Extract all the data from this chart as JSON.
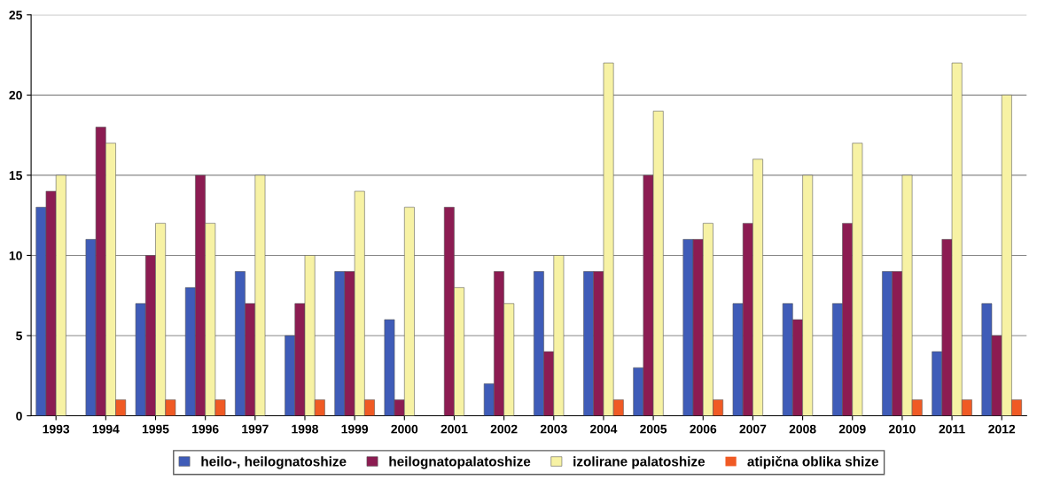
{
  "chart_data": {
    "type": "bar",
    "categories": [
      "1993",
      "1994",
      "1995",
      "1996",
      "1997",
      "1998",
      "1999",
      "2000",
      "2001",
      "2002",
      "2003",
      "2004",
      "2005",
      "2006",
      "2007",
      "2008",
      "2009",
      "2010",
      "2011",
      "2012"
    ],
    "series": [
      {
        "name": "heilo-, heilognatoshize",
        "color": "#3f5cb8",
        "values": [
          13,
          11,
          7,
          8,
          9,
          5,
          9,
          6,
          0,
          2,
          9,
          9,
          3,
          11,
          7,
          7,
          7,
          9,
          4,
          7
        ]
      },
      {
        "name": "heilognatopalatoshize",
        "color": "#8c1c52",
        "values": [
          14,
          18,
          10,
          15,
          7,
          7,
          9,
          1,
          13,
          9,
          4,
          9,
          15,
          11,
          12,
          6,
          12,
          9,
          11,
          5
        ]
      },
      {
        "name": "izolirane palatoshize",
        "color": "#f7f2a4",
        "values": [
          15,
          17,
          12,
          12,
          15,
          10,
          14,
          13,
          8,
          7,
          10,
          22,
          19,
          12,
          16,
          15,
          17,
          15,
          22,
          20
        ]
      },
      {
        "name": "atipična oblika shize",
        "color": "#f05a24",
        "values": [
          0,
          1,
          1,
          1,
          0,
          1,
          1,
          0,
          0,
          0,
          0,
          1,
          0,
          1,
          0,
          0,
          0,
          1,
          1,
          1
        ]
      }
    ],
    "ylim": [
      0,
      25
    ],
    "yticks": [
      0,
      5,
      10,
      15,
      20,
      25
    ],
    "grid": "y",
    "legend": "bottom"
  }
}
